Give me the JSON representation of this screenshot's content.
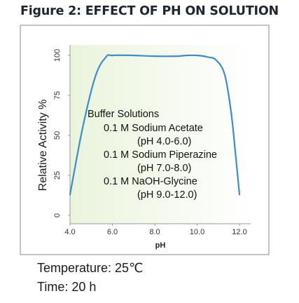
{
  "figure": {
    "title": "Figure 2: EFFECT OF PH ON SOLUTION"
  },
  "chart_data": {
    "type": "line",
    "title": "Figure 2: EFFECT OF PH ON SOLUTION",
    "xlabel": "pH",
    "ylabel": "Relative Activity %",
    "xlim": [
      4.0,
      12.0
    ],
    "ylim": [
      0,
      100
    ],
    "xticks": [
      "4.0",
      "6.0",
      "8.0",
      "10.0",
      "12.0"
    ],
    "yticks": [
      "0",
      "25",
      "50",
      "75",
      "100"
    ],
    "grid": false,
    "series": [
      {
        "x": [
          4.0,
          4.6,
          5.2,
          5.7,
          6.0,
          7.0,
          8.0,
          9.0,
          9.5,
          10.0,
          10.5,
          10.9,
          11.3,
          11.6,
          11.8,
          12.0
        ],
        "y": [
          13,
          55,
          87,
          99,
          100,
          100,
          99.5,
          99.5,
          100,
          100,
          99,
          97,
          88,
          65,
          40,
          13
        ]
      }
    ],
    "colors": {
      "line": "#3c8dd0",
      "fill_left": "#eaf4dc",
      "fill_right": "#ffffff",
      "frame": "#8a8a8a",
      "text": "#333333"
    },
    "annotation": {
      "heading": "Buffer Solutions",
      "lines": [
        "0.1 M Sodium Acetate",
        "(pH 4.0-6.0)",
        "0.1 M Sodium Piperazine",
        "(pH 7.0-8.0)",
        "0.1 M NaOH-Glycine",
        "(pH 9.0-12.0)"
      ]
    }
  },
  "conditions": {
    "temperature": "Temperature: 25℃",
    "time": "Time: 20 h"
  }
}
